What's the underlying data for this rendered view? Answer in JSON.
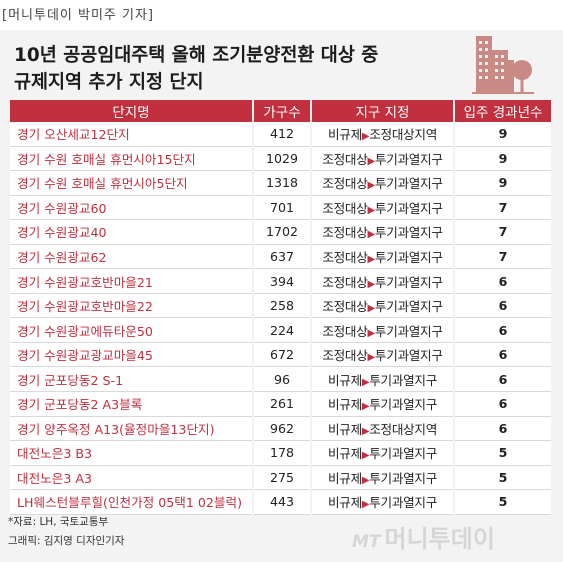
{
  "credit": "[머니투데이 박미주 기자]",
  "title_line1": "10년 공공임대주택 올해 조기분양전환 대상 중",
  "title_line2": "규제지역 추가 지정 단지",
  "table": {
    "headers": [
      "단지명",
      "가구수",
      "지구 지정",
      "입주 경과년수"
    ],
    "rows": [
      {
        "name": "경기 오산세교12단지",
        "units": "412",
        "from": "비규제",
        "to": "조정대상지역",
        "years": "9"
      },
      {
        "name": "경기 수원 호매실 휴먼시아15단지",
        "units": "1029",
        "from": "조정대상",
        "to": "투기과열지구",
        "years": "9"
      },
      {
        "name": "경기 수원 호매실 휴먼시아5단지",
        "units": "1318",
        "from": "조정대상",
        "to": "투기과열지구",
        "years": "9"
      },
      {
        "name": "경기 수원광교60",
        "units": "701",
        "from": "조정대상",
        "to": "투기과열지구",
        "years": "7"
      },
      {
        "name": "경기 수원광교40",
        "units": "1702",
        "from": "조정대상",
        "to": "투기과열지구",
        "years": "7"
      },
      {
        "name": "경기 수원광교62",
        "units": "637",
        "from": "조정대상",
        "to": "투기과열지구",
        "years": "7"
      },
      {
        "name": "경기 수원광교호반마을21",
        "units": "394",
        "from": "조정대상",
        "to": "투기과열지구",
        "years": "6"
      },
      {
        "name": "경기 수원광교호반마을22",
        "units": "258",
        "from": "조정대상",
        "to": "투기과열지구",
        "years": "6"
      },
      {
        "name": "경기 수원광교에듀타운50",
        "units": "224",
        "from": "조정대상",
        "to": "투기과열지구",
        "years": "6"
      },
      {
        "name": "경기 수원광교광교마을45",
        "units": "672",
        "from": "조정대상",
        "to": "투기과열지구",
        "years": "6"
      },
      {
        "name": "경기 군포당동2 S-1",
        "units": "96",
        "from": "비규제",
        "to": "투기과열지구",
        "years": "6"
      },
      {
        "name": "경기 군포당동2 A3블록",
        "units": "261",
        "from": "비규제",
        "to": "투기과열지구",
        "years": "6"
      },
      {
        "name": "경기 양주옥정 A13(율정마을13단지)",
        "units": "962",
        "from": "비규제",
        "to": "조정대상지역",
        "years": "6"
      },
      {
        "name": "대전노은3 B3",
        "units": "178",
        "from": "비규제",
        "to": "투기과열지구",
        "years": "5"
      },
      {
        "name": "대전노은3 A3",
        "units": "275",
        "from": "비규제",
        "to": "투기과열지구",
        "years": "5"
      },
      {
        "name": "LH웨스턴블루힐(인천가정 05택1 02블럭)",
        "units": "443",
        "from": "비규제",
        "to": "투기과열지구",
        "years": "5"
      }
    ]
  },
  "source_note": "*자료: LH, 국토교통부",
  "graphic_credit": "그래픽: 김지영 디자인기자",
  "logo": {
    "mt": "MT",
    "name": "머니투데이"
  },
  "colors": {
    "accent": "#c0303f",
    "background": "#f3f3f3",
    "icon": "#c98a86"
  },
  "icons": [
    "building-icon",
    "tree-icon",
    "arrow-right-icon"
  ]
}
